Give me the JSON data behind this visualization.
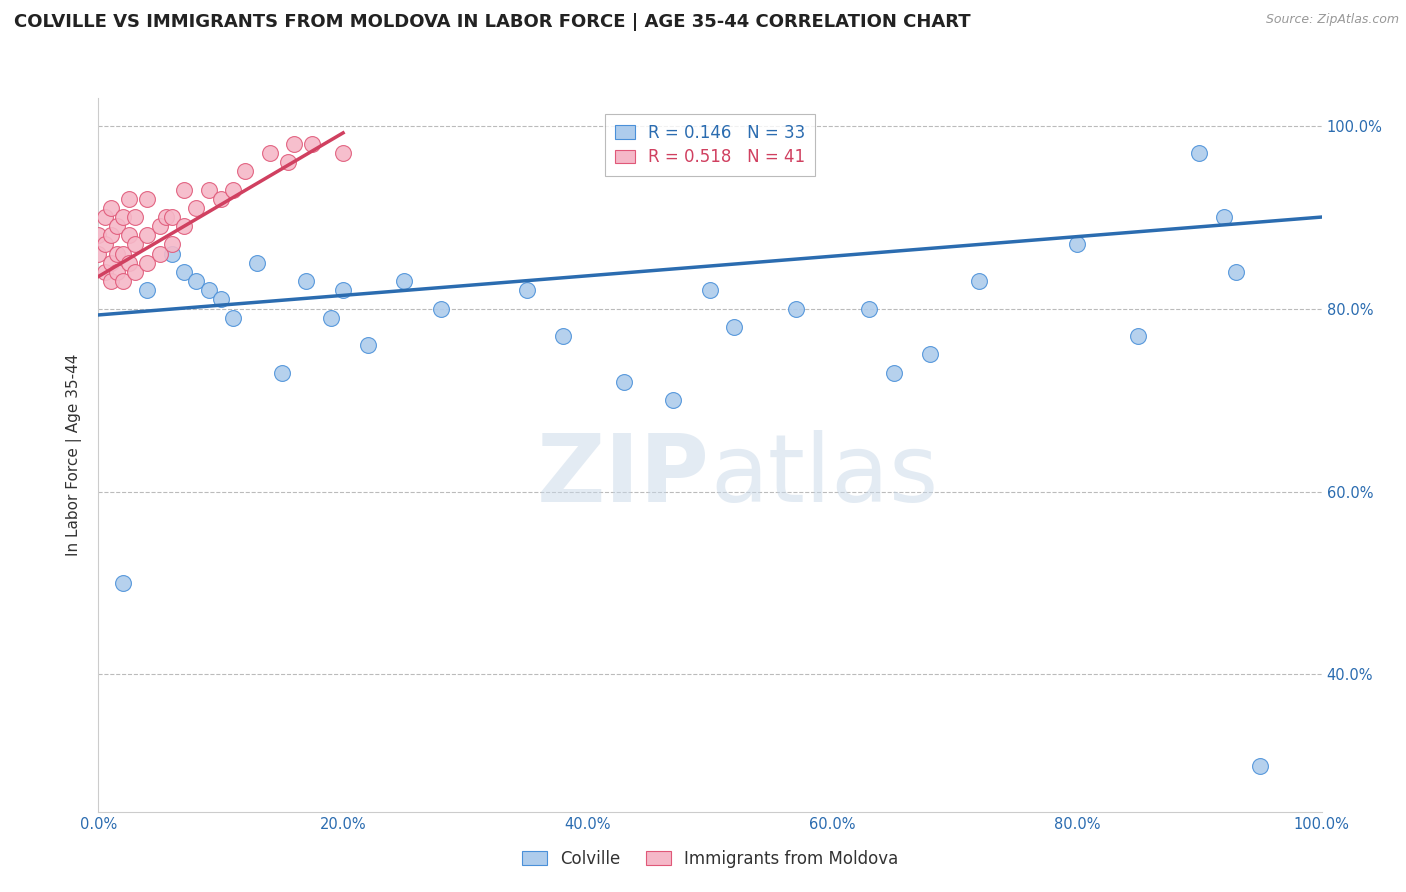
{
  "title": "COLVILLE VS IMMIGRANTS FROM MOLDOVA IN LABOR FORCE | AGE 35-44 CORRELATION CHART",
  "source_text": "Source: ZipAtlas.com",
  "ylabel": "In Labor Force | Age 35-44",
  "xlim": [
    0.0,
    1.0
  ],
  "ylim": [
    0.25,
    1.03
  ],
  "xtick_positions": [
    0.0,
    0.2,
    0.4,
    0.6,
    0.8,
    1.0
  ],
  "xtick_labels": [
    "0.0%",
    "20.0%",
    "40.0%",
    "60.0%",
    "80.0%",
    "100.0%"
  ],
  "ytick_positions": [
    0.4,
    0.6,
    0.8,
    1.0
  ],
  "ytick_labels": [
    "40.0%",
    "60.0%",
    "80.0%",
    "100.0%"
  ],
  "blue_series_label": "Colville",
  "pink_series_label": "Immigrants from Moldova",
  "blue_R": "0.146",
  "blue_N": "33",
  "pink_R": "0.518",
  "pink_N": "41",
  "blue_color": "#aeccec",
  "blue_edge_color": "#4a90d9",
  "pink_color": "#f5b8c8",
  "pink_edge_color": "#e05878",
  "blue_line_color": "#2b6cb0",
  "pink_line_color": "#d04060",
  "label_color": "#2b6cb0",
  "watermark_color": "#c8d8e8",
  "blue_scatter_x": [
    0.02,
    0.04,
    0.06,
    0.07,
    0.08,
    0.09,
    0.1,
    0.11,
    0.13,
    0.15,
    0.17,
    0.19,
    0.2,
    0.22,
    0.25,
    0.28,
    0.35,
    0.38,
    0.43,
    0.47,
    0.5,
    0.52,
    0.57,
    0.63,
    0.65,
    0.68,
    0.72,
    0.8,
    0.85,
    0.9,
    0.92,
    0.93,
    0.95
  ],
  "blue_scatter_y": [
    0.5,
    0.82,
    0.86,
    0.84,
    0.83,
    0.82,
    0.81,
    0.79,
    0.85,
    0.73,
    0.83,
    0.79,
    0.82,
    0.76,
    0.83,
    0.8,
    0.82,
    0.77,
    0.72,
    0.7,
    0.82,
    0.78,
    0.8,
    0.8,
    0.73,
    0.75,
    0.83,
    0.87,
    0.77,
    0.97,
    0.9,
    0.84,
    0.3
  ],
  "pink_scatter_x": [
    0.0,
    0.0,
    0.005,
    0.005,
    0.005,
    0.01,
    0.01,
    0.01,
    0.01,
    0.015,
    0.015,
    0.015,
    0.02,
    0.02,
    0.02,
    0.025,
    0.025,
    0.025,
    0.03,
    0.03,
    0.03,
    0.04,
    0.04,
    0.04,
    0.05,
    0.05,
    0.055,
    0.06,
    0.06,
    0.07,
    0.07,
    0.08,
    0.09,
    0.1,
    0.11,
    0.12,
    0.14,
    0.155,
    0.16,
    0.175,
    0.2
  ],
  "pink_scatter_y": [
    0.86,
    0.88,
    0.84,
    0.87,
    0.9,
    0.83,
    0.85,
    0.88,
    0.91,
    0.84,
    0.86,
    0.89,
    0.83,
    0.86,
    0.9,
    0.85,
    0.88,
    0.92,
    0.84,
    0.87,
    0.9,
    0.85,
    0.88,
    0.92,
    0.86,
    0.89,
    0.9,
    0.87,
    0.9,
    0.89,
    0.93,
    0.91,
    0.93,
    0.92,
    0.93,
    0.95,
    0.97,
    0.96,
    0.98,
    0.98,
    0.97
  ],
  "blue_trend_x": [
    0.0,
    1.0
  ],
  "blue_trend_y": [
    0.793,
    0.9
  ],
  "pink_trend_x": [
    0.0,
    0.2
  ],
  "pink_trend_y": [
    0.835,
    0.992
  ],
  "grid_color": "#bbbbbb",
  "background_color": "#ffffff",
  "title_fontsize": 13,
  "axis_label_fontsize": 11,
  "tick_fontsize": 10.5,
  "legend_fontsize": 12
}
